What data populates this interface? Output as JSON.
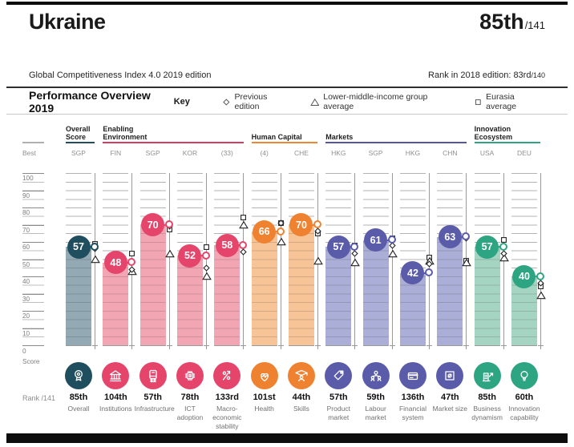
{
  "header": {
    "country": "Ukraine",
    "rank": "85th",
    "rank_total": "/141",
    "edition_line": "Global Competitiveness Index 4.0 2019 edition",
    "prev_rank_text": "Rank in 2018 edition: 83rd",
    "prev_rank_total": "/140"
  },
  "overview": {
    "title": "Performance Overview 2019",
    "key_label": "Key",
    "key_items": [
      {
        "icon": "diamond-key-icon",
        "label": "Previous edition"
      },
      {
        "icon": "triangle-key-icon",
        "label": "Lower-middle-income group average"
      },
      {
        "icon": "square-key-icon",
        "label": "Eurasia average"
      }
    ]
  },
  "chart_data": {
    "type": "bar",
    "title": "Performance Overview 2019",
    "ylabel": "Score",
    "ylim": [
      0,
      100
    ],
    "ticks": [
      100,
      90,
      80,
      70,
      60,
      50,
      40,
      30,
      20,
      10
    ],
    "zero_label": "0",
    "score_label": "Score",
    "best_label": "Best",
    "rank_axis_label": "Rank /141",
    "legend": [
      "Previous edition",
      "Lower-middle-income group average",
      "Eurasia average"
    ],
    "groups": [
      {
        "id": "overall",
        "label": "Overall Score",
        "color": "#1f4e5f",
        "tint": "#93a9b3",
        "start": 0,
        "count": 1
      },
      {
        "id": "enabling",
        "label": "Enabling Environment",
        "color": "#d63b63",
        "tint": "#f2a6b4",
        "start": 1,
        "count": 4
      },
      {
        "id": "human",
        "label": "Human Capital",
        "color": "#ef8632",
        "tint": "#f6c497",
        "start": 5,
        "count": 2
      },
      {
        "id": "markets",
        "label": "Markets",
        "color": "#54569f",
        "tint": "#abaed6",
        "start": 7,
        "count": 4
      },
      {
        "id": "innovation",
        "label": "Innovation Ecosystem",
        "color": "#2ea582",
        "tint": "#a6d4c2",
        "start": 11,
        "count": 2
      }
    ],
    "group_bubble_colors": {
      "overall": "#1f4e5f",
      "enabling": "#e5456b",
      "human": "#ef8230",
      "markets": "#5a5ca9",
      "innovation": "#2ea582"
    },
    "columns": [
      {
        "pillar": "Overall",
        "group": "overall",
        "best": "SGP",
        "value": 57,
        "previous": 57,
        "lower_middle_income_avg": 51,
        "eurasia_avg": 60,
        "rank": "85th",
        "icon": "medal-icon"
      },
      {
        "pillar": "Institutions",
        "group": "enabling",
        "best": "FIN",
        "value": 48,
        "previous": 45,
        "lower_middle_income_avg": 44,
        "eurasia_avg": 54,
        "rank": "104th",
        "icon": "bank-icon"
      },
      {
        "pillar": "Infrastructure",
        "group": "enabling",
        "best": "SGP",
        "value": 70,
        "previous": 70,
        "lower_middle_income_avg": 54,
        "eurasia_avg": 68,
        "rank": "57th",
        "icon": "train-icon"
      },
      {
        "pillar": "ICT adoption",
        "group": "enabling",
        "best": "KOR",
        "value": 52,
        "previous": 46,
        "lower_middle_income_avg": 41,
        "eurasia_avg": 58,
        "rank": "78th",
        "icon": "chip-icon"
      },
      {
        "pillar": "Macro-economic stability",
        "group": "enabling",
        "best": "(33)",
        "value": 58,
        "previous": 55,
        "lower_middle_income_avg": 71,
        "eurasia_avg": 75,
        "rank": "133rd",
        "icon": "percent-arrow-icon"
      },
      {
        "pillar": "Health",
        "group": "human",
        "best": "(4)",
        "value": 66,
        "previous": 72,
        "lower_middle_income_avg": 61,
        "eurasia_avg": 72,
        "rank": "101st",
        "icon": "heart-pulse-icon"
      },
      {
        "pillar": "Skills",
        "group": "human",
        "best": "CHE",
        "value": 70,
        "previous": 67,
        "lower_middle_income_avg": 50,
        "eurasia_avg": 66,
        "rank": "44th",
        "icon": "graduate-icon"
      },
      {
        "pillar": "Product market",
        "group": "markets",
        "best": "HKG",
        "value": 57,
        "previous": 54,
        "lower_middle_income_avg": 49,
        "eurasia_avg": 59,
        "rank": "57th",
        "icon": "price-tag-icon"
      },
      {
        "pillar": "Labour market",
        "group": "markets",
        "best": "SGP",
        "value": 61,
        "previous": 59,
        "lower_middle_income_avg": 54,
        "eurasia_avg": 63,
        "rank": "59th",
        "icon": "people-network-icon"
      },
      {
        "pillar": "Financial system",
        "group": "markets",
        "best": "HKG",
        "value": 42,
        "previous": 48,
        "lower_middle_income_avg": 50,
        "eurasia_avg": 52,
        "rank": "136th",
        "icon": "credit-card-icon"
      },
      {
        "pillar": "Market size",
        "group": "markets",
        "best": "CHN",
        "value": 63,
        "previous": 63,
        "lower_middle_income_avg": 49,
        "eurasia_avg": 50,
        "rank": "47th",
        "icon": "expand-arrows-icon"
      },
      {
        "pillar": "Business dynamism",
        "group": "innovation",
        "best": "USA",
        "value": 57,
        "previous": 54,
        "lower_middle_income_avg": 52,
        "eurasia_avg": 62,
        "rank": "85th",
        "icon": "building-arrow-icon"
      },
      {
        "pillar": "Innovation capability",
        "group": "innovation",
        "best": "DEU",
        "value": 40,
        "previous": 37,
        "lower_middle_income_avg": 30,
        "eurasia_avg": 35,
        "rank": "60th",
        "icon": "lightbulb-icon"
      }
    ]
  }
}
